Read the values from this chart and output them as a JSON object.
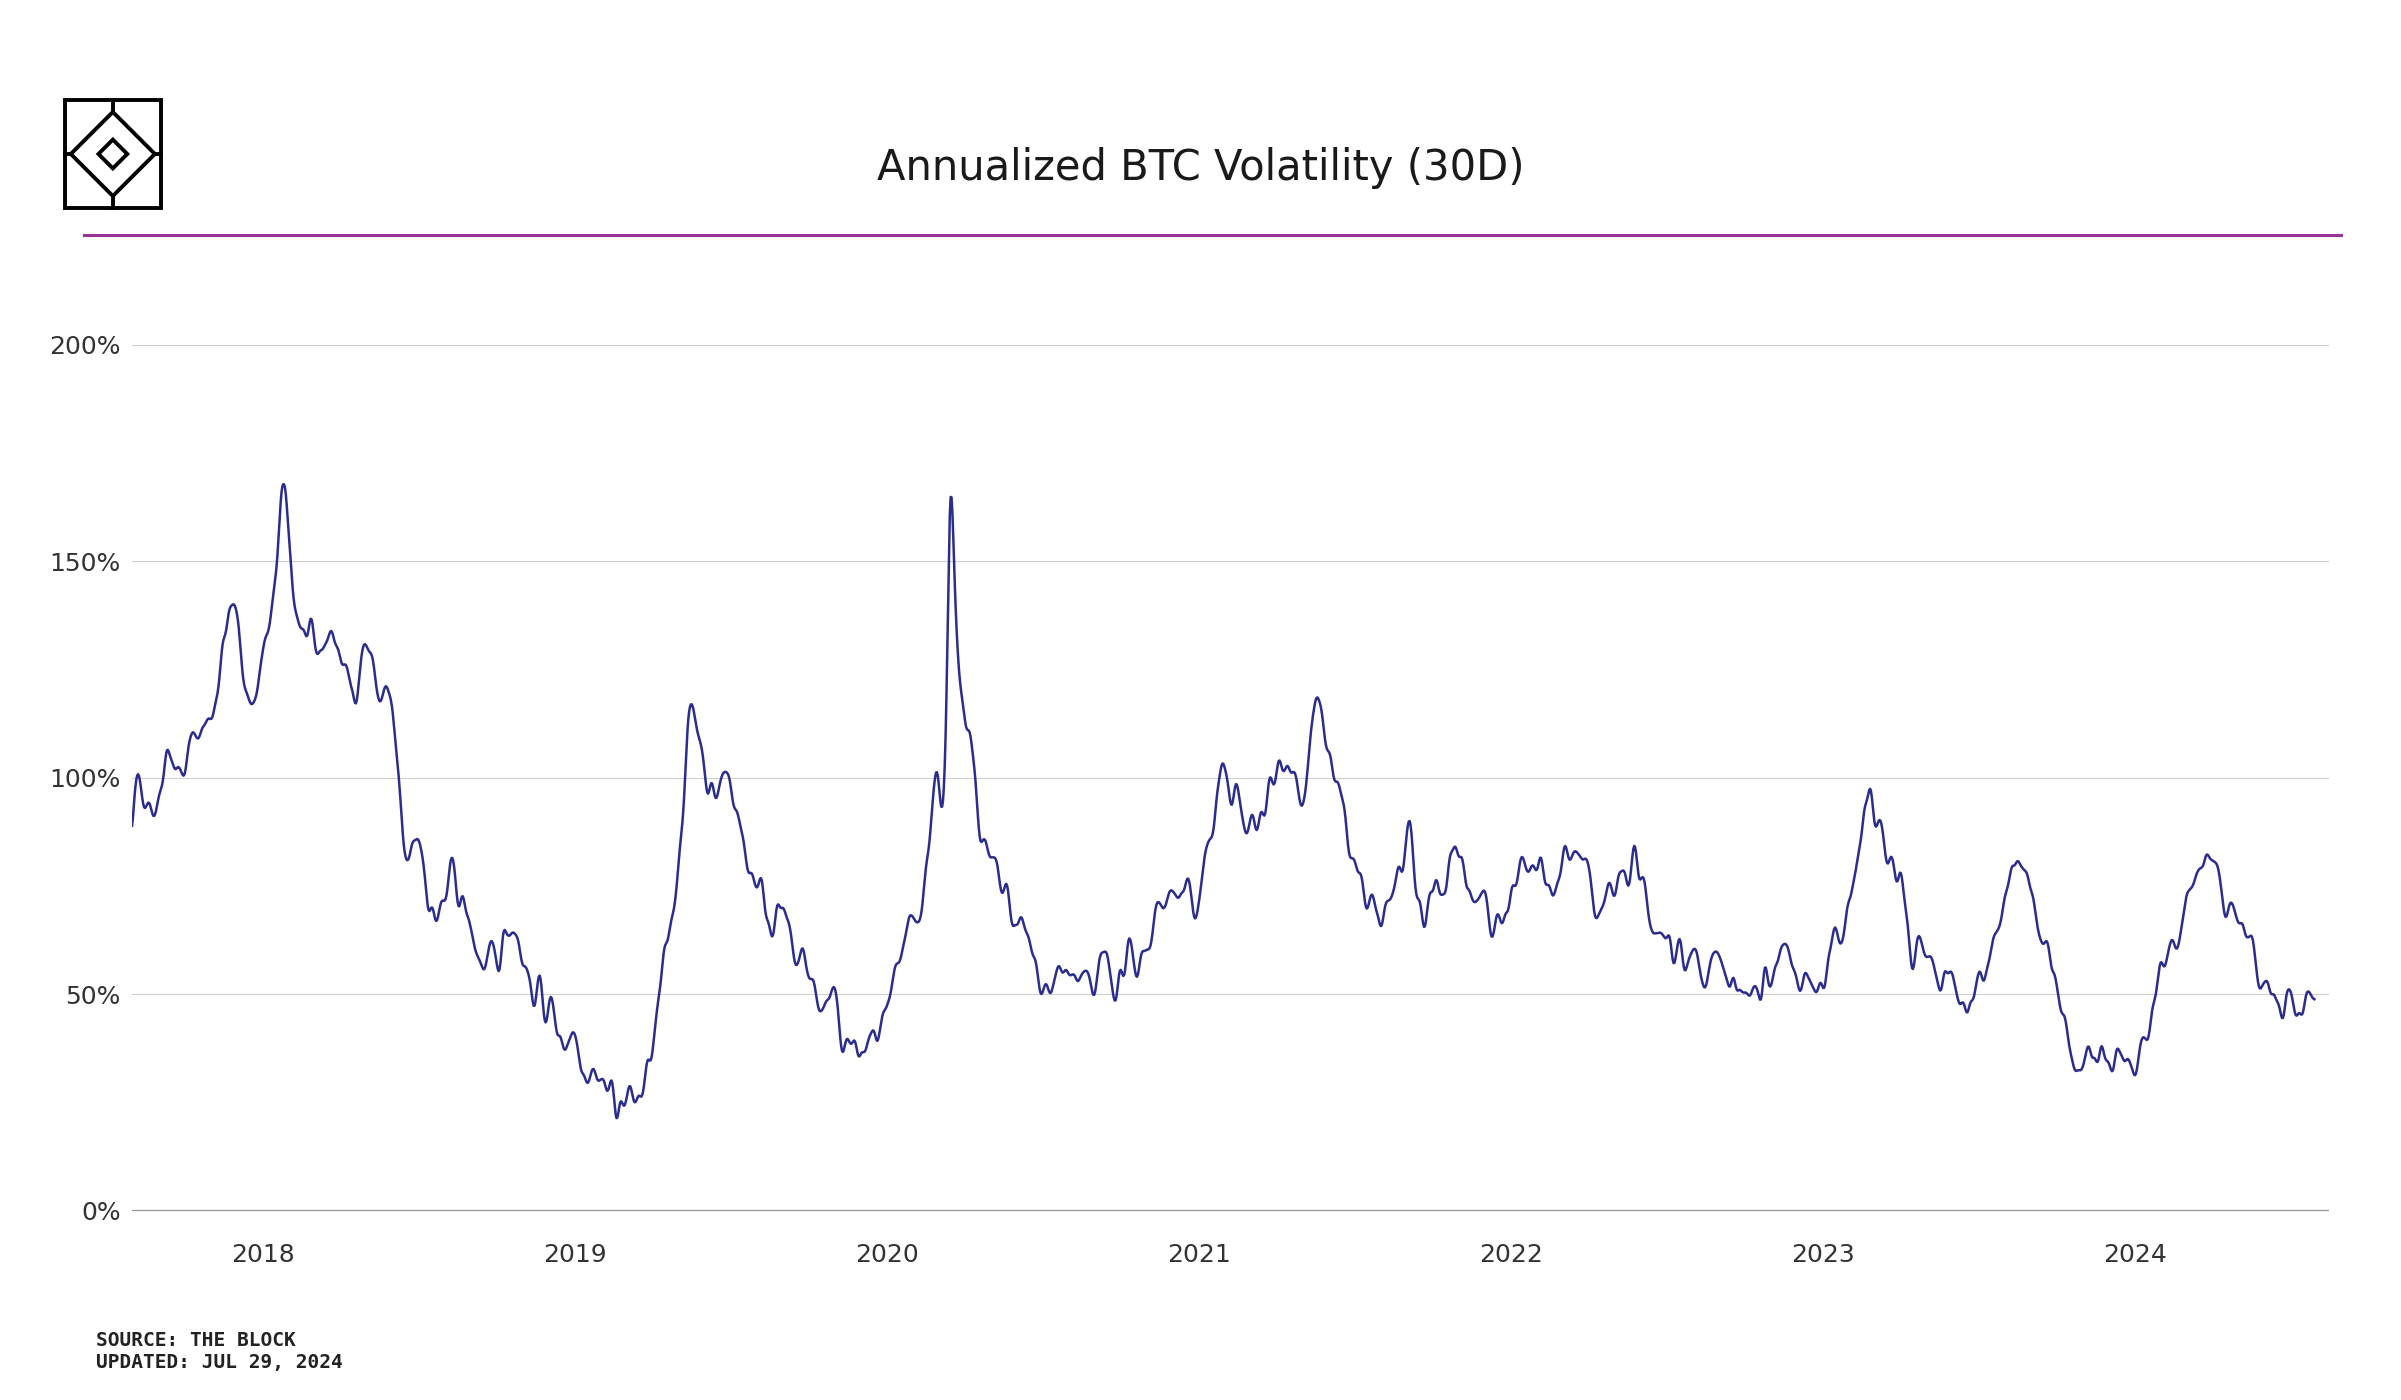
{
  "title": "Annualized BTC Volatility (30D)",
  "title_fontsize": 30,
  "line_color": "#2b2d8e",
  "line_width": 1.8,
  "background_color": "#ffffff",
  "grid_color": "#d0d0d0",
  "accent_line_color": "#993399",
  "ylabel_ticks": [
    "0%",
    "50%",
    "100%",
    "150%",
    "200%"
  ],
  "ytick_values": [
    0,
    50,
    100,
    150,
    200
  ],
  "ylim": [
    -5,
    215
  ],
  "source_text": "SOURCE: THE BLOCK\nUPDATED: JUL 29, 2024",
  "source_fontsize": 14
}
